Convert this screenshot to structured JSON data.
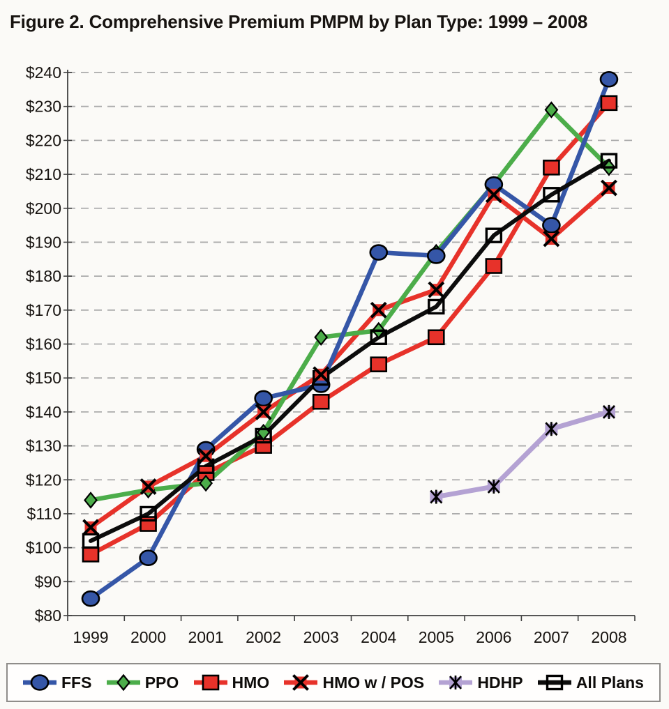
{
  "page": {
    "title": "Figure 2. Comprehensive Premium PMPM by Plan Type: 1999 – 2008"
  },
  "chart_data": {
    "type": "line",
    "title": "Figure 2. Comprehensive Premium PMPM by Plan Type: 1999 – 2008",
    "categories": [
      "1999",
      "2000",
      "2001",
      "2002",
      "2003",
      "2004",
      "2005",
      "2006",
      "2007",
      "2008"
    ],
    "xlabel": "",
    "ylabel": "",
    "ylim": [
      80,
      240
    ],
    "ytick_step": 10,
    "ytick_labels": [
      "$80",
      "$90",
      "$100",
      "$110",
      "$120",
      "$130",
      "$140",
      "$150",
      "$160",
      "$170",
      "$180",
      "$190",
      "$200",
      "$210",
      "$220",
      "$230",
      "$240"
    ],
    "grid": "horizontal-dashed",
    "legend_position": "bottom",
    "colors": {
      "ffs_blue": "#3556a7",
      "ppo_green": "#4cad4a",
      "hmo_red": "#e7322a",
      "hdhp_purple": "#b4a2d3",
      "all_plans_black": "#0c0c0c",
      "grid_gray": "#ababab",
      "axis_gray": "#3f3f3f"
    },
    "series": [
      {
        "name": "FFS",
        "color": "#3556a7",
        "marker": "circle",
        "values": [
          85,
          97,
          129,
          144,
          148,
          187,
          186,
          207,
          195,
          238
        ]
      },
      {
        "name": "PPO",
        "color": "#4cad4a",
        "marker": "diamond",
        "values": [
          114,
          117,
          119,
          134,
          162,
          164,
          187,
          207,
          229,
          212
        ]
      },
      {
        "name": "HMO",
        "color": "#e7322a",
        "marker": "square",
        "values": [
          98,
          107,
          122,
          130,
          143,
          154,
          162,
          183,
          212,
          231
        ]
      },
      {
        "name": "HMO w / POS",
        "color": "#e7322a",
        "marker": "x",
        "values": [
          106,
          118,
          127,
          140,
          151,
          170,
          176,
          204,
          191,
          206
        ]
      },
      {
        "name": "HDHP",
        "color": "#b4a2d3",
        "marker": "asterisk",
        "values": [
          null,
          null,
          null,
          null,
          null,
          null,
          115,
          118,
          135,
          140
        ]
      },
      {
        "name": "All Plans",
        "color": "#0c0c0c",
        "marker": "open-square",
        "values": [
          102,
          110,
          124,
          133,
          150,
          162,
          171,
          192,
          204,
          214
        ]
      }
    ]
  }
}
